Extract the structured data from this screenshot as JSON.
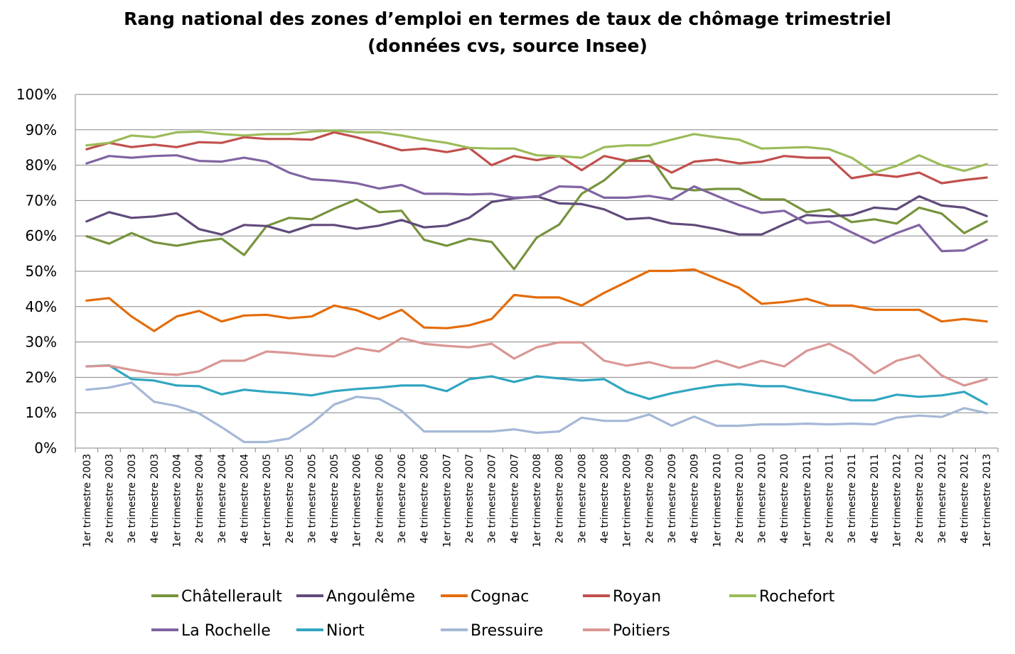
{
  "chart_data": {
    "type": "line",
    "title": "Rang national des zones d’emploi en termes de taux de chômage trimestriel",
    "subtitle": "(données cvs, source Insee)",
    "xlabel": "",
    "ylabel": "",
    "ylim": [
      0,
      100
    ],
    "y_ticks": [
      "0%",
      "10%",
      "20%",
      "30%",
      "40%",
      "50%",
      "60%",
      "70%",
      "80%",
      "90%",
      "100%"
    ],
    "grid": true,
    "legend_position": "bottom",
    "x": [
      "1er trimestre 2003",
      "2e trimestre 2003",
      "3e trimestre 2003",
      "4e trimestre 2003",
      "1er trimestre 2004",
      "2e trimestre 2004",
      "3e trimestre 2004",
      "4e trimestre 2004",
      "1er trimestre 2005",
      "2e trimestre 2005",
      "3e trimestre 2005",
      "4e trimestre 2005",
      "1er trimestre 2006",
      "2e trimestre 2006",
      "3e trimestre 2006",
      "4e trimestre 2006",
      "1er trimestre 2007",
      "2e trimestre 2007",
      "3e trimestre 2007",
      "4e trimestre 2007",
      "1er trimestre 2008",
      "2e trimestre 2008",
      "3e trimestre 2008",
      "4e trimestre 2008",
      "1er trimestre 2009",
      "2e trimestre 2009",
      "3e trimestre 2009",
      "4e trimestre 2009",
      "1er trimestre 2010",
      "2e trimestre 2010",
      "3e trimestre 2010",
      "4e trimestre 2010",
      "1er trimestre 2011",
      "2e trimestre 2011",
      "3e trimestre 2011",
      "4e trimestre 2011",
      "1er trimestre 2012",
      "2e trimestre 2012",
      "3e trimestre 2012",
      "4e trimestre 2012",
      "1er trimestre 2013"
    ],
    "series": [
      {
        "name": "Châtellerault",
        "color": "#77933C",
        "values": [
          59.9,
          57.8,
          60.8,
          58.2,
          57.2,
          58.4,
          59.2,
          54.6,
          62.8,
          65.1,
          64.7,
          67.7,
          70.3,
          66.7,
          67.1,
          58.9,
          57.2,
          59.2,
          58.3,
          50.6,
          59.5,
          63.2,
          71.9,
          75.7,
          81.2,
          82.7,
          73.6,
          72.9,
          73.3,
          73.3,
          70.3,
          70.3,
          66.7,
          67.5,
          63.9,
          64.7,
          63.5,
          68.0,
          66.3,
          60.8,
          64.1
        ]
      },
      {
        "name": "Angoulême",
        "color": "#604A7B",
        "values": [
          64.1,
          66.7,
          65.1,
          65.5,
          66.4,
          61.9,
          60.4,
          63.1,
          62.8,
          61.0,
          63.1,
          63.1,
          62.0,
          62.9,
          64.5,
          62.4,
          62.9,
          65.1,
          69.6,
          70.6,
          71.2,
          69.2,
          69.0,
          67.5,
          64.7,
          65.1,
          63.5,
          63.1,
          61.9,
          60.4,
          60.4,
          63.3,
          65.9,
          65.5,
          65.9,
          68.0,
          67.5,
          71.2,
          68.6,
          68.0,
          65.6
        ]
      },
      {
        "name": "Cognac",
        "color": "#E46C0A",
        "values": [
          41.7,
          42.4,
          37.2,
          33.1,
          37.2,
          38.8,
          35.8,
          37.5,
          37.7,
          36.7,
          37.2,
          40.3,
          39.0,
          36.5,
          39.1,
          34.1,
          33.9,
          34.7,
          36.5,
          43.3,
          42.6,
          42.6,
          40.3,
          43.9,
          47.0,
          50.1,
          50.1,
          50.5,
          47.9,
          45.3,
          40.8,
          41.3,
          42.2,
          40.3,
          40.3,
          39.1,
          39.1,
          39.1,
          35.8,
          36.5,
          35.8
        ]
      },
      {
        "name": "Royan",
        "color": "#C0504D",
        "values": [
          84.5,
          86.3,
          85.1,
          85.8,
          85.1,
          86.5,
          86.3,
          87.9,
          87.4,
          87.4,
          87.2,
          89.3,
          87.9,
          86.1,
          84.2,
          84.7,
          83.7,
          84.9,
          80.0,
          82.6,
          81.4,
          82.6,
          78.6,
          82.6,
          81.2,
          81.2,
          77.9,
          81.0,
          81.6,
          80.5,
          81.0,
          82.6,
          82.1,
          82.1,
          76.3,
          77.4,
          76.7,
          77.9,
          74.9,
          75.8,
          76.5
        ]
      },
      {
        "name": "Rochefort",
        "color": "#9BBB59",
        "values": [
          85.6,
          86.3,
          88.4,
          87.9,
          89.3,
          89.5,
          88.8,
          88.4,
          88.8,
          88.8,
          89.5,
          89.8,
          89.3,
          89.3,
          88.4,
          87.2,
          86.3,
          84.9,
          84.7,
          84.7,
          82.8,
          82.6,
          82.1,
          85.1,
          85.6,
          85.6,
          87.2,
          88.8,
          87.9,
          87.2,
          84.7,
          84.9,
          85.1,
          84.5,
          82.1,
          77.9,
          79.8,
          82.8,
          80.0,
          78.4,
          80.3
        ]
      },
      {
        "name": "La Rochelle",
        "color": "#8064A2",
        "values": [
          80.5,
          82.6,
          82.1,
          82.6,
          82.8,
          81.2,
          81.0,
          82.1,
          81.0,
          77.9,
          76.0,
          75.6,
          74.9,
          73.4,
          74.4,
          71.9,
          71.9,
          71.7,
          71.9,
          70.8,
          71.0,
          74.0,
          73.8,
          70.8,
          70.8,
          71.3,
          70.3,
          74.0,
          71.3,
          68.7,
          66.5,
          67.1,
          63.6,
          64.1,
          61.0,
          58.0,
          60.8,
          63.1,
          55.7,
          55.9,
          58.9
        ]
      },
      {
        "name": "Niort",
        "color": "#31A6C0",
        "values": [
          23.1,
          23.4,
          19.5,
          19.1,
          17.7,
          17.5,
          15.2,
          16.5,
          15.9,
          15.5,
          14.9,
          16.1,
          16.7,
          17.1,
          17.7,
          17.7,
          16.1,
          19.5,
          20.3,
          18.7,
          20.3,
          19.7,
          19.1,
          19.5,
          15.9,
          13.9,
          15.5,
          16.7,
          17.7,
          18.1,
          17.5,
          17.5,
          16.1,
          14.9,
          13.5,
          13.5,
          15.1,
          14.5,
          14.9,
          15.9,
          12.4
        ]
      },
      {
        "name": "Bressuire",
        "color": "#A5B8D7",
        "values": [
          16.5,
          17.1,
          18.5,
          13.1,
          11.9,
          9.8,
          5.9,
          1.7,
          1.7,
          2.7,
          6.9,
          12.3,
          14.5,
          13.9,
          10.5,
          4.7,
          4.7,
          4.7,
          4.7,
          5.3,
          4.3,
          4.7,
          8.6,
          7.7,
          7.7,
          9.5,
          6.3,
          8.9,
          6.3,
          6.3,
          6.7,
          6.7,
          6.9,
          6.7,
          6.9,
          6.7,
          8.6,
          9.2,
          8.8,
          11.3,
          9.9
        ]
      },
      {
        "name": "Poitiers",
        "color": "#D99694",
        "values": [
          23.1,
          23.3,
          22.1,
          21.1,
          20.7,
          21.7,
          24.7,
          24.7,
          27.3,
          26.9,
          26.3,
          25.9,
          28.3,
          27.3,
          31.1,
          29.5,
          28.9,
          28.5,
          29.5,
          25.3,
          28.5,
          29.9,
          29.9,
          24.7,
          23.3,
          24.3,
          22.7,
          22.7,
          24.7,
          22.7,
          24.7,
          23.1,
          27.5,
          29.5,
          26.3,
          21.1,
          24.7,
          26.3,
          20.5,
          17.7,
          19.5
        ]
      }
    ]
  }
}
